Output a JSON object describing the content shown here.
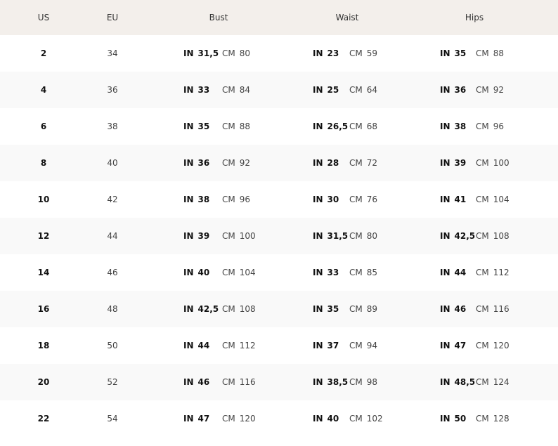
{
  "headers": {
    "us": "US",
    "eu": "EU",
    "bust": "Bust",
    "waist": "Waist",
    "hips": "Hips"
  },
  "units": {
    "in": "IN",
    "cm": "CM"
  },
  "rows": [
    {
      "us": "2",
      "eu": "34",
      "bust_in": "31,5",
      "bust_cm": "80",
      "waist_in": "23",
      "waist_cm": "59",
      "hips_in": "35",
      "hips_cm": "88"
    },
    {
      "us": "4",
      "eu": "36",
      "bust_in": "33",
      "bust_cm": "84",
      "waist_in": "25",
      "waist_cm": "64",
      "hips_in": "36",
      "hips_cm": "92"
    },
    {
      "us": "6",
      "eu": "38",
      "bust_in": "35",
      "bust_cm": "88",
      "waist_in": "26,5",
      "waist_cm": "68",
      "hips_in": "38",
      "hips_cm": "96"
    },
    {
      "us": "8",
      "eu": "40",
      "bust_in": "36",
      "bust_cm": "92",
      "waist_in": "28",
      "waist_cm": "72",
      "hips_in": "39",
      "hips_cm": "100"
    },
    {
      "us": "10",
      "eu": "42",
      "bust_in": "38",
      "bust_cm": "96",
      "waist_in": "30",
      "waist_cm": "76",
      "hips_in": "41",
      "hips_cm": "104"
    },
    {
      "us": "12",
      "eu": "44",
      "bust_in": "39",
      "bust_cm": "100",
      "waist_in": "31,5",
      "waist_cm": "80",
      "hips_in": "42,5",
      "hips_cm": "108"
    },
    {
      "us": "14",
      "eu": "46",
      "bust_in": "40",
      "bust_cm": "104",
      "waist_in": "33",
      "waist_cm": "85",
      "hips_in": "44",
      "hips_cm": "112"
    },
    {
      "us": "16",
      "eu": "48",
      "bust_in": "42,5",
      "bust_cm": "108",
      "waist_in": "35",
      "waist_cm": "89",
      "hips_in": "46",
      "hips_cm": "116"
    },
    {
      "us": "18",
      "eu": "50",
      "bust_in": "44",
      "bust_cm": "112",
      "waist_in": "37",
      "waist_cm": "94",
      "hips_in": "47",
      "hips_cm": "120"
    },
    {
      "us": "20",
      "eu": "52",
      "bust_in": "46",
      "bust_cm": "116",
      "waist_in": "38,5",
      "waist_cm": "98",
      "hips_in": "48,5",
      "hips_cm": "124"
    },
    {
      "us": "22",
      "eu": "54",
      "bust_in": "47",
      "bust_cm": "120",
      "waist_in": "40",
      "waist_cm": "102",
      "hips_in": "50",
      "hips_cm": "128"
    }
  ],
  "colors": {
    "header_bg": "#f3efeb",
    "alt_row_bg": "#f9f9f9"
  }
}
